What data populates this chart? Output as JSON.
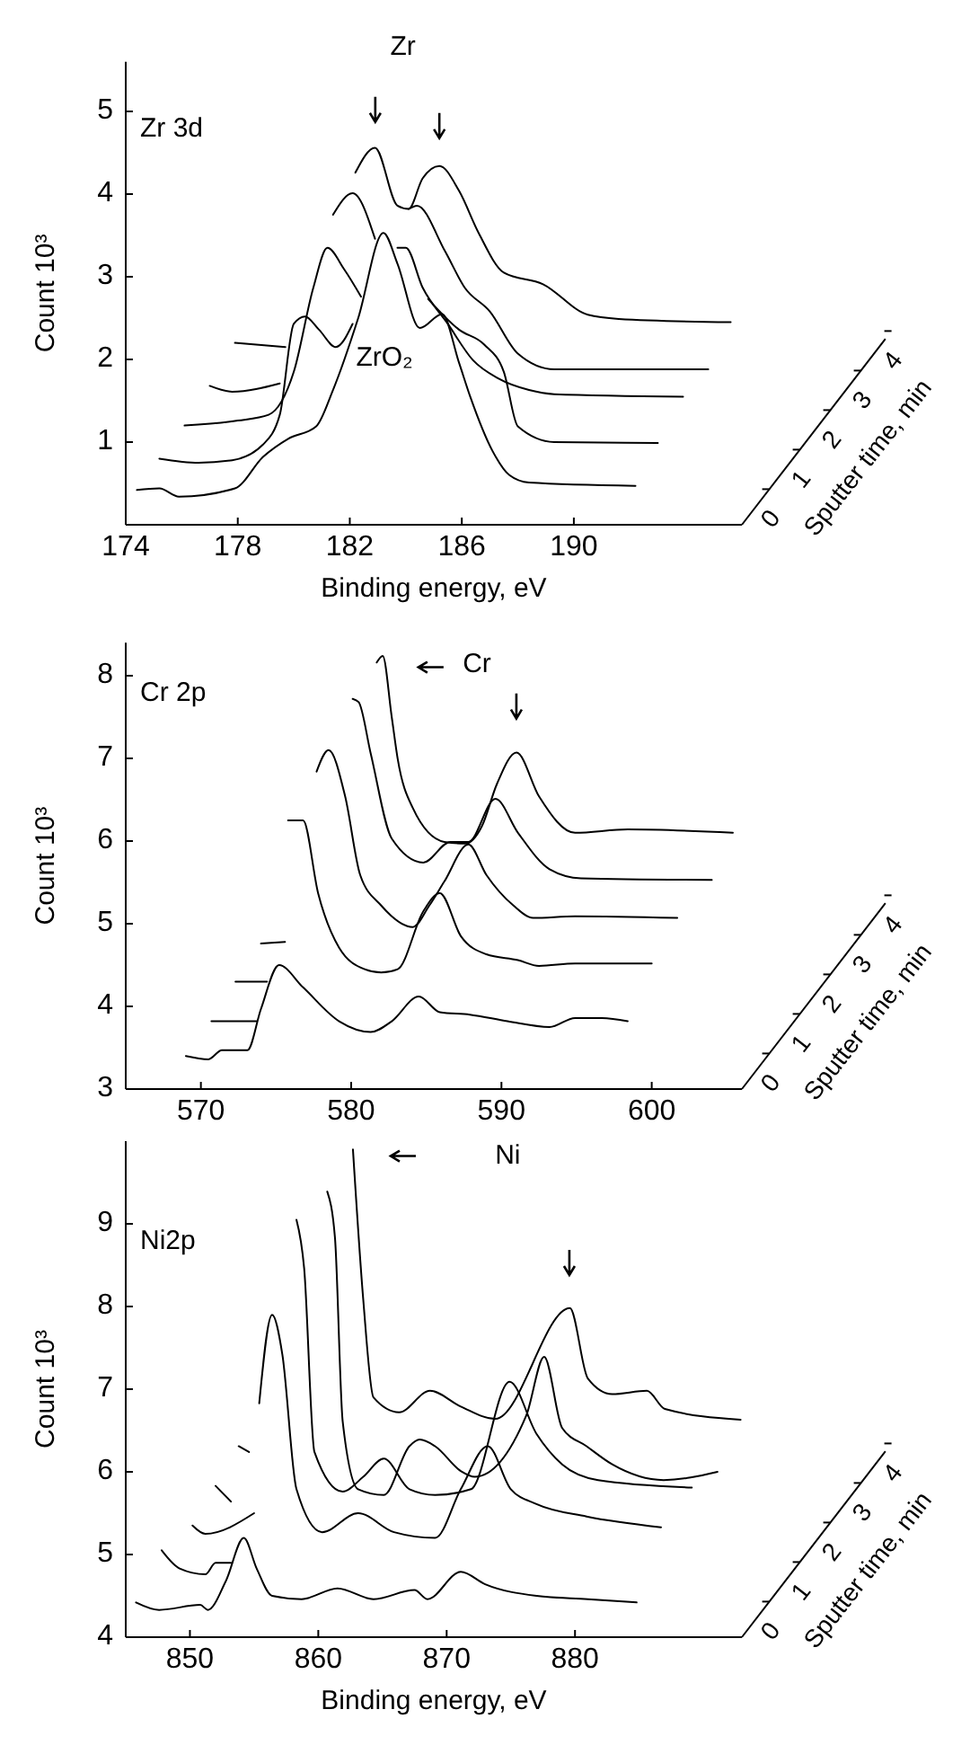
{
  "chart_data": [
    {
      "type": "line",
      "title": "Zr 3d",
      "xlabel": "Binding energy, eV",
      "ylabel": "Count 10³",
      "legend_title": "Sputter time, min",
      "xlim": [
        174,
        196
      ],
      "xticks": [
        174,
        178,
        182,
        186,
        190
      ],
      "ylim": [
        0,
        5.6
      ],
      "yticks": [
        1,
        2,
        3,
        4,
        5
      ],
      "legend": "right",
      "annotations": [
        "Zr",
        "ZrO₂"
      ],
      "series": [
        {
          "name": "0",
          "color": "#000000",
          "x": [
            174.4,
            175.2,
            175.9,
            177.9,
            178.9,
            179.8,
            180.8,
            181.4,
            182.3,
            183.2,
            183.7,
            184.5,
            185.3,
            185.9,
            186.3,
            187.1,
            187.7,
            188.4,
            192.2
          ],
          "values": [
            0.42,
            0.44,
            0.34,
            0.44,
            0.82,
            1.04,
            1.19,
            1.63,
            2.5,
            3.53,
            3.16,
            2.38,
            2.55,
            1.96,
            1.55,
            0.89,
            0.6,
            0.51,
            0.47
          ]
        },
        {
          "name": "1",
          "color": "#000000",
          "x": [
            175.2,
            176.6,
            177.8,
            178.9,
            179.5,
            180.0,
            180.4,
            180.9,
            181.5,
            182.1,
            183.5,
            184.8,
            185.9,
            186.8,
            187.5,
            188.0,
            189.3,
            193.0
          ],
          "values": [
            0.8,
            0.75,
            0.78,
            0.97,
            1.33,
            2.43,
            2.52,
            2.36,
            2.15,
            2.43,
            null,
            2.73,
            2.36,
            2.18,
            1.85,
            1.19,
            1.0,
            0.99
          ]
        },
        {
          "name": "2",
          "color": "#000000",
          "x": [
            176.1,
            178.0,
            179.1,
            180.0,
            180.7,
            181.2,
            181.8,
            182.4,
            183.0,
            183.7,
            184.0,
            184.6,
            185.5,
            186.4,
            187.3,
            188.4,
            189.3,
            193.9
          ],
          "values": [
            1.2,
            1.26,
            1.33,
            1.85,
            2.87,
            3.35,
            3.09,
            2.76,
            null,
            3.35,
            3.35,
            2.87,
            2.43,
            1.99,
            1.77,
            1.63,
            1.58,
            1.55
          ]
        },
        {
          "name": "3",
          "color": "#000000",
          "x": [
            177.0,
            177.8,
            179.5,
            180.5,
            181.4,
            182.1,
            182.9,
            183.5,
            184.1,
            184.4,
            185.4,
            186.1,
            187.0,
            188.0,
            189.3,
            194.8
          ],
          "values": [
            1.68,
            1.61,
            1.71,
            null,
            3.75,
            4.01,
            3.46,
            null,
            3.82,
            3.86,
            3.31,
            2.87,
            2.58,
            2.07,
            1.88,
            1.88
          ]
        },
        {
          "name": "4",
          "color": "#000000",
          "x": [
            177.9,
            179.7,
            181.0,
            182.2,
            182.9,
            183.7,
            184.1,
            184.6,
            185.2,
            185.9,
            186.6,
            187.5,
            188.9,
            190.5,
            191.6,
            195.6
          ],
          "values": [
            2.2,
            2.15,
            null,
            4.26,
            4.56,
            3.86,
            3.82,
            4.19,
            4.34,
            4.04,
            3.53,
            3.05,
            2.91,
            2.54,
            2.49,
            2.45
          ]
        }
      ]
    },
    {
      "type": "line",
      "title": "Cr 2p",
      "ylabel": "Count 10³",
      "legend_title": "Sputter time, min",
      "xlim": [
        565,
        606
      ],
      "xticks": [
        570,
        580,
        590,
        600
      ],
      "ylim": [
        3,
        8.4
      ],
      "yticks": [
        3,
        4,
        5,
        6,
        7,
        8
      ],
      "legend": "right",
      "annotations": [
        "Cr"
      ],
      "series": [
        {
          "name": "0",
          "color": "#000000",
          "x": [
            569.0,
            570.5,
            571.4,
            573.1,
            574.0,
            575.2,
            576.8,
            579.2,
            581.3,
            582.7,
            584.5,
            585.9,
            587.9,
            590.4,
            593.2,
            594.9,
            596.7,
            598.4
          ],
          "values": [
            3.4,
            3.36,
            3.47,
            3.47,
            3.97,
            4.5,
            4.23,
            3.82,
            3.69,
            3.82,
            4.12,
            3.93,
            3.9,
            3.82,
            3.75,
            3.86,
            3.86,
            3.82
          ]
        },
        {
          "name": "1",
          "color": "#000000",
          "x": [
            570.7,
            573.7,
            574.8,
            575.8,
            576.8,
            577.8,
            579.2,
            580.9,
            582.0,
            583.1,
            584.8,
            585.9,
            587.3,
            589.0,
            591.1,
            592.5,
            594.9,
            600.0
          ],
          "values": [
            3.82,
            3.82,
            null,
            6.25,
            6.25,
            5.37,
            4.71,
            4.45,
            4.41,
            4.45,
            5.15,
            5.37,
            4.85,
            4.63,
            4.56,
            4.49,
            4.52,
            4.52
          ]
        },
        {
          "name": "2",
          "color": "#000000",
          "x": [
            572.3,
            574.4,
            576.0,
            577.7,
            578.5,
            579.6,
            580.6,
            582.0,
            584.1,
            585.2,
            586.2,
            587.8,
            589.0,
            590.8,
            592.1,
            594.9,
            601.7
          ],
          "values": [
            4.3,
            4.3,
            null,
            6.84,
            7.1,
            6.54,
            5.59,
            5.22,
            4.96,
            5.22,
            5.51,
            5.96,
            5.59,
            5.22,
            5.07,
            5.09,
            5.07
          ]
        },
        {
          "name": "3",
          "color": "#000000",
          "x": [
            574.0,
            575.6,
            578.0,
            580.1,
            580.5,
            581.3,
            582.7,
            584.8,
            586.6,
            587.8,
            589.6,
            591.1,
            593.2,
            595.3,
            604.0
          ],
          "values": [
            4.76,
            4.78,
            null,
            7.72,
            7.68,
            7.06,
            6.03,
            5.74,
            5.99,
            5.99,
            6.51,
            6.1,
            5.66,
            5.55,
            5.53
          ]
        },
        {
          "name": "4",
          "color": "#000000",
          "x": [
            581.7,
            582.1,
            582.7,
            583.1,
            584.1,
            586.2,
            587.6,
            588.7,
            589.7,
            591.0,
            592.5,
            594.9,
            598.4,
            605.4
          ],
          "values": [
            8.16,
            8.24,
            7.5,
            6.99,
            6.4,
            5.99,
            5.97,
            6.18,
            6.69,
            7.07,
            6.54,
            6.1,
            6.14,
            6.1
          ]
        }
      ]
    },
    {
      "type": "line",
      "title": "Ni2p",
      "xlabel": "Binding energy, eV",
      "ylabel": "Count 10³",
      "legend_title": "Sputter time, min",
      "xlim": [
        845,
        893
      ],
      "xticks": [
        850,
        860,
        870,
        880
      ],
      "ylim": [
        4,
        10
      ],
      "yticks": [
        4,
        5,
        6,
        7,
        8,
        9
      ],
      "legend": "right",
      "annotations": [
        "Ni"
      ],
      "series": [
        {
          "name": "0",
          "color": "#000000",
          "x": [
            845.8,
            847.6,
            850.8,
            851.4,
            852.8,
            854.2,
            855.2,
            856.4,
            858.7,
            861.5,
            864.3,
            867.5,
            868.5,
            871.1,
            873.0,
            877.0,
            881.0,
            884.8
          ],
          "values": [
            4.42,
            4.33,
            4.39,
            4.33,
            4.68,
            5.2,
            4.83,
            4.5,
            4.46,
            4.59,
            4.46,
            4.57,
            4.46,
            4.79,
            4.64,
            4.5,
            4.46,
            4.42
          ]
        },
        {
          "name": "1",
          "color": "#000000",
          "x": [
            847.8,
            849.2,
            851.2,
            852.0,
            853.2,
            854.3,
            855.4,
            856.4,
            857.2,
            858.3,
            860.3,
            863.1,
            865.9,
            869.1,
            871.1,
            873.2,
            875.0,
            877.0,
            880.9,
            886.7
          ],
          "values": [
            5.05,
            4.83,
            4.76,
            4.9,
            4.9,
            null,
            6.83,
            7.9,
            7.42,
            5.79,
            5.27,
            5.5,
            5.27,
            5.2,
            5.79,
            6.31,
            5.79,
            5.61,
            5.46,
            5.33
          ]
        },
        {
          "name": "2",
          "color": "#000000",
          "x": [
            850.2,
            851.2,
            855.0,
            856.6,
            858.3,
            858.9,
            859.7,
            861.9,
            863.5,
            865.1,
            867.1,
            869.1,
            871.9,
            874.9,
            877.0,
            879.0,
            881.8,
            889.1
          ],
          "values": [
            5.35,
            5.25,
            5.5,
            null,
            9.05,
            8.46,
            6.24,
            5.76,
            5.94,
            6.16,
            5.79,
            5.72,
            5.79,
            7.09,
            6.46,
            6.09,
            5.9,
            5.81
          ]
        },
        {
          "name": "3",
          "color": "#000000",
          "x": [
            852.0,
            853.2,
            857.0,
            860.7,
            861.3,
            861.9,
            863.1,
            865.1,
            867.1,
            867.9,
            869.1,
            871.1,
            872.2,
            876.2,
            877.6,
            879.0,
            880.9,
            882.9,
            886.9,
            891.1
          ],
          "values": [
            5.83,
            5.64,
            null,
            9.39,
            8.83,
            6.61,
            5.79,
            5.72,
            6.31,
            6.39,
            6.31,
            6.01,
            5.94,
            6.68,
            7.39,
            6.53,
            6.31,
            6.09,
            5.9,
            6.0
          ]
        },
        {
          "name": "4",
          "color": "#000000",
          "x": [
            853.8,
            854.6,
            858.0,
            862.7,
            863.5,
            864.3,
            866.3,
            868.7,
            871.1,
            873.8,
            879.6,
            881.0,
            882.9,
            885.6,
            887.0,
            892.9
          ],
          "values": [
            6.31,
            6.24,
            null,
            9.9,
            8.09,
            6.9,
            6.72,
            6.98,
            6.79,
            6.64,
            7.98,
            7.13,
            6.94,
            6.98,
            6.76,
            6.63
          ]
        }
      ]
    }
  ]
}
